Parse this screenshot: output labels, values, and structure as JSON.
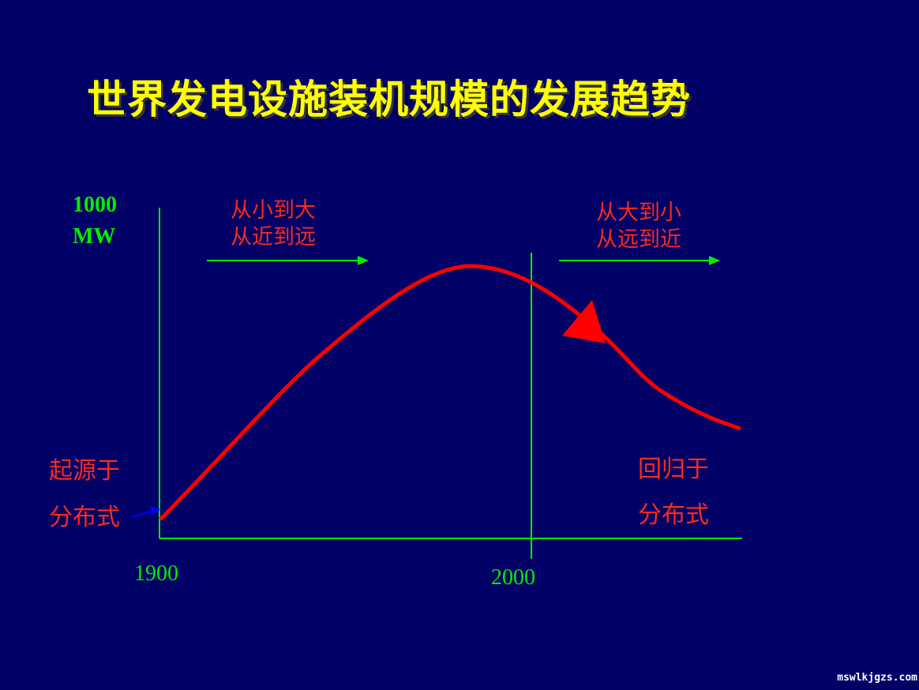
{
  "title": "世界发电设施装机规模的发展趋势",
  "y_axis": {
    "value": "1000",
    "unit": "MW"
  },
  "x_axis": {
    "start": "1900",
    "mid": "2000"
  },
  "left_note": {
    "line1": "从小到大",
    "line2": "从近到远"
  },
  "right_note": {
    "line1": "从大到小",
    "line2": "从远到近"
  },
  "origin_label": {
    "line1": "起源于",
    "line2": "分布式"
  },
  "return_label": {
    "line1": "回归于",
    "line2": "分布式"
  },
  "watermark": "mswlkjgzs.com",
  "colors": {
    "background": "#000066",
    "title": "#ffff00",
    "axis": "#00ee00",
    "curve": "#ff0000",
    "pointer": "#0000ff"
  }
}
